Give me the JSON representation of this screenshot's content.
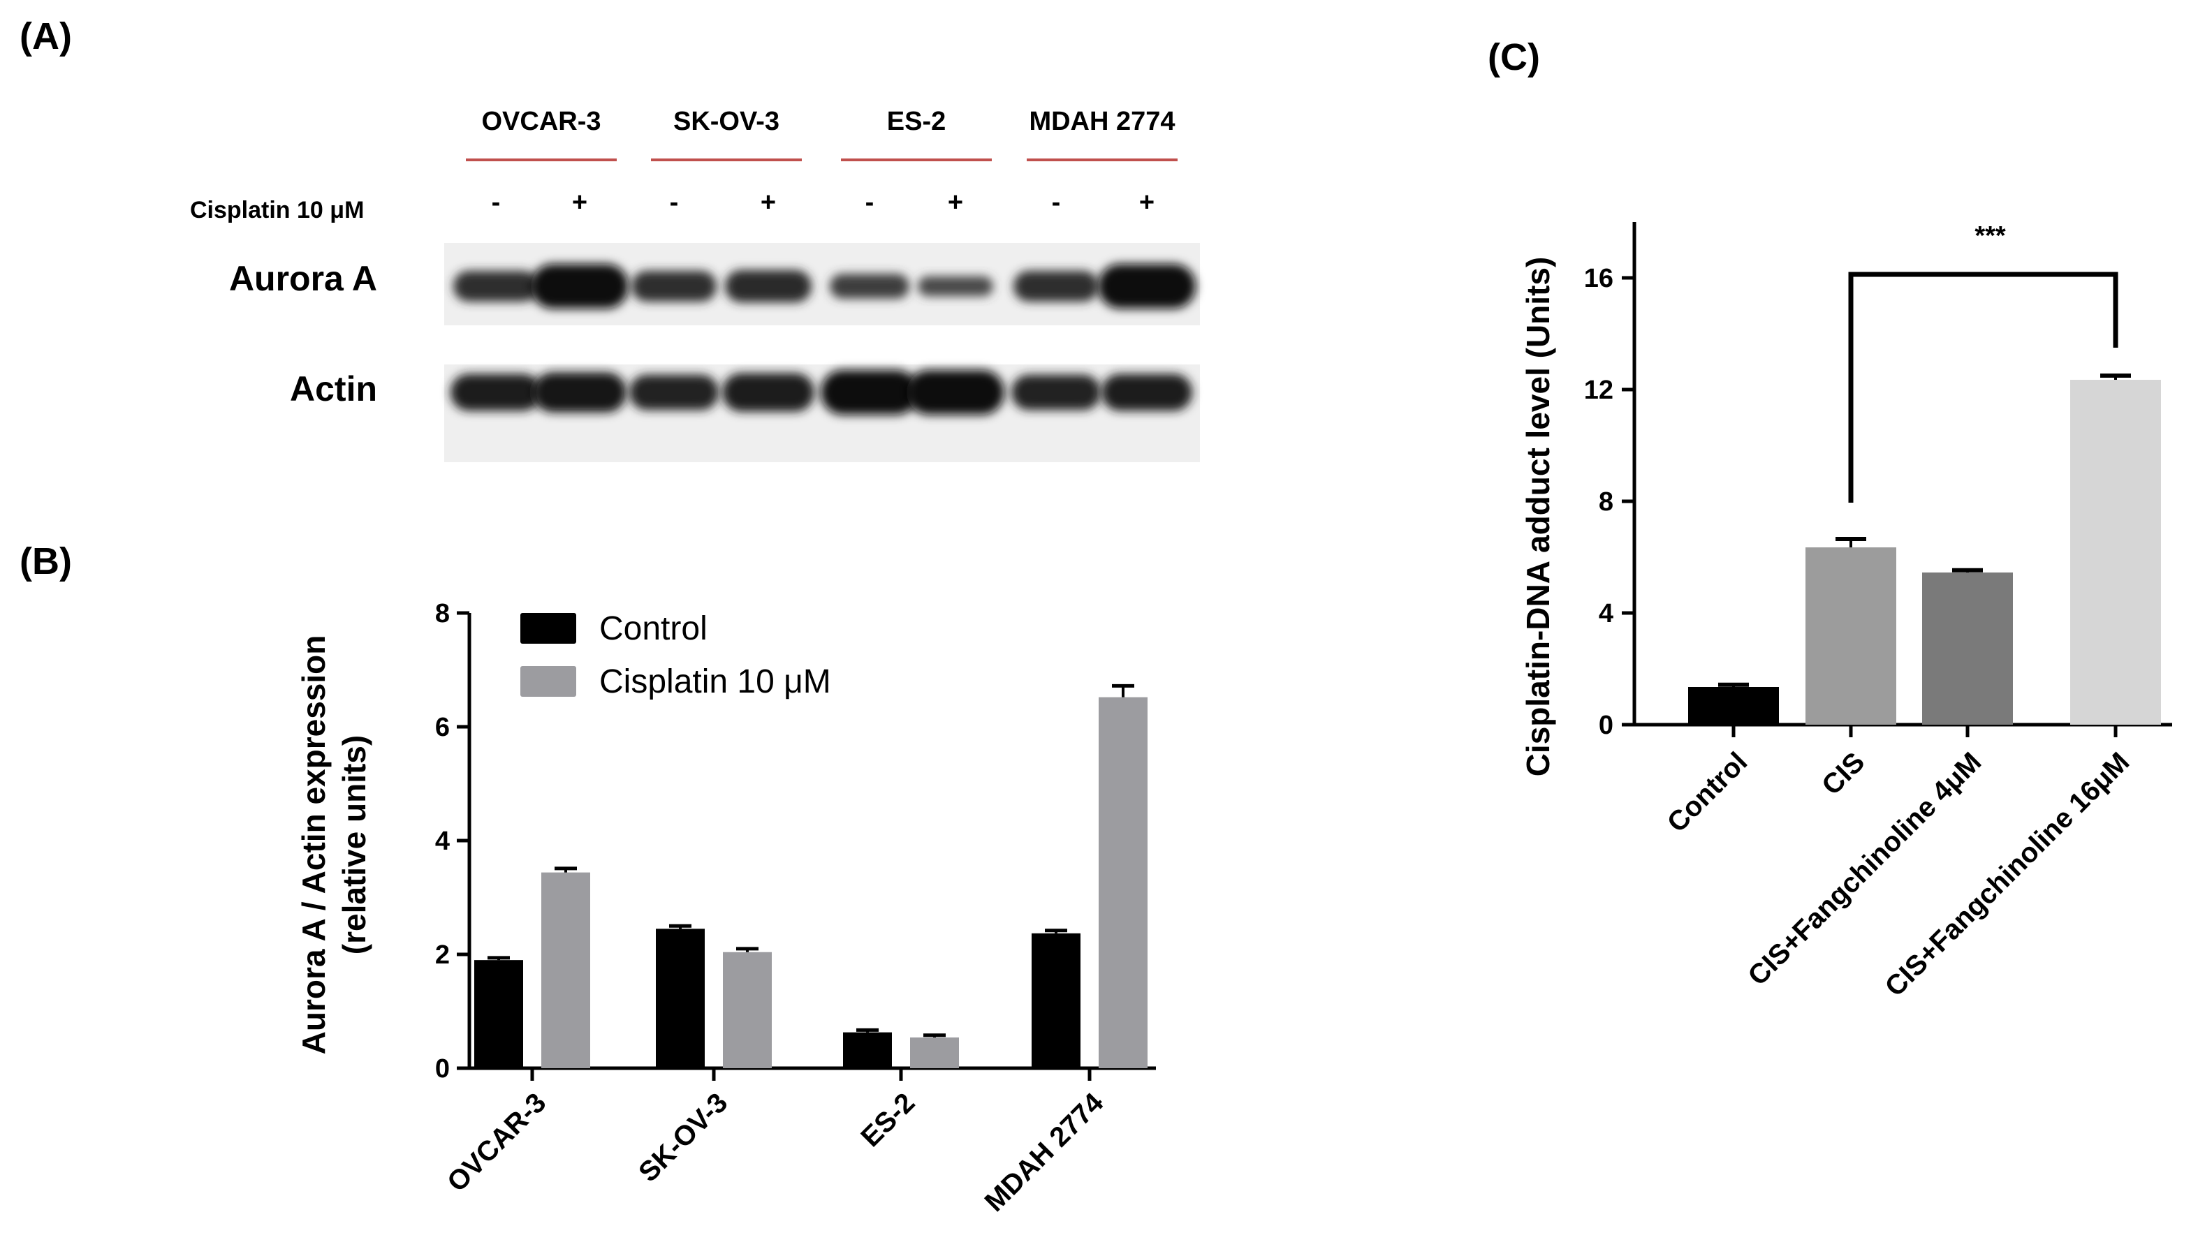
{
  "panels": {
    "A": "(A)",
    "B": "(B)",
    "C": "(C)"
  },
  "blot": {
    "cell_lines": [
      "OVCAR-3",
      "SK-OV-3",
      "ES-2",
      "MDAH 2774"
    ],
    "treatment_label": "Cisplatin 10 μM",
    "lane_signs": [
      "-",
      "+",
      "-",
      "+",
      "-",
      "+",
      "-",
      "+"
    ],
    "bands": [
      {
        "name": "Aurora A",
        "intensities": [
          0.55,
          1.0,
          0.55,
          0.6,
          0.35,
          0.2,
          0.55,
          1.0
        ]
      },
      {
        "name": "Actin",
        "intensities": [
          0.75,
          0.85,
          0.7,
          0.8,
          1.0,
          1.0,
          0.7,
          0.75
        ]
      }
    ],
    "header_line_color": "#c0504d"
  },
  "chart_data": [
    {
      "id": "B",
      "type": "bar",
      "categories": [
        "OVCAR-3",
        "SK-OV-3",
        "ES-2",
        "MDAH 2774"
      ],
      "series": [
        {
          "name": "Control",
          "values": [
            1.9,
            2.45,
            0.63,
            2.37
          ],
          "errors": [
            0.04,
            0.05,
            0.04,
            0.05
          ],
          "color": "#000000"
        },
        {
          "name": "Cisplatin 10 μM",
          "values": [
            3.44,
            2.04,
            0.54,
            6.52
          ],
          "errors": [
            0.07,
            0.06,
            0.04,
            0.2
          ],
          "color": "#9c9ca0"
        }
      ],
      "ylabel": "Aurora A / Actin expression\n(relative units)",
      "ylim": [
        0,
        8
      ],
      "yticks": [
        0,
        2,
        4,
        6,
        8
      ],
      "legend": "top-left",
      "grid": false
    },
    {
      "id": "C",
      "type": "bar",
      "categories": [
        "Control",
        "CIS",
        "CIS+Fangchinoline 4μM",
        "CIS+Fangchinoline 16μM"
      ],
      "values": [
        1.35,
        6.35,
        5.45,
        12.35
      ],
      "errors": [
        0.08,
        0.3,
        0.08,
        0.15
      ],
      "colors": [
        "#000000",
        "#9c9c9c",
        "#7a7a7a",
        "#d6d6d6"
      ],
      "ylabel": "Cisplatin-DNA adduct level (Units)",
      "ylim": [
        0,
        18
      ],
      "yticks": [
        0,
        4,
        8,
        12,
        16
      ],
      "significance": {
        "from": 1,
        "to": 3,
        "label": "***"
      },
      "grid": false
    }
  ]
}
